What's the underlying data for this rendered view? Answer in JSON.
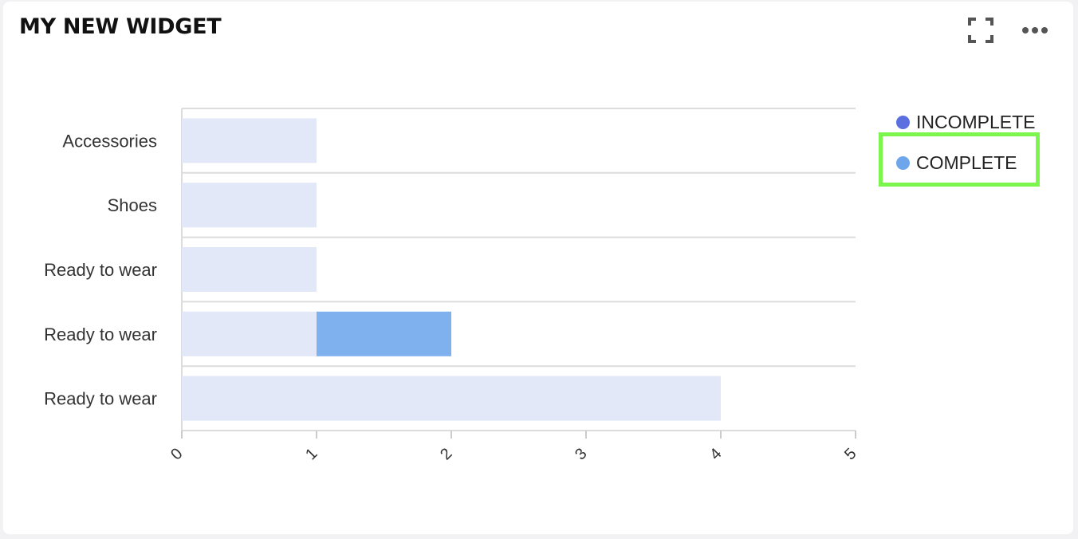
{
  "widget": {
    "title": "MY NEW WIDGET",
    "expand_icon": "expand-icon",
    "more_icon": "more-horizontal-icon"
  },
  "legend": {
    "items": [
      {
        "label": "INCOMPLETE",
        "color": "#5b6fe0"
      },
      {
        "label": "COMPLETE",
        "color": "#6ea6ec"
      }
    ],
    "highlighted_index": 1,
    "highlight_color": "#7cf54d"
  },
  "chart_data": {
    "type": "bar",
    "orientation": "horizontal",
    "stacked": true,
    "categories": [
      "Accessories",
      "Shoes",
      "Ready to wear",
      "Ready to wear",
      "Ready to wear"
    ],
    "series": [
      {
        "values": [
          1,
          1,
          1,
          1,
          4
        ],
        "color": "#e3e8f8"
      },
      {
        "name": "COMPLETE",
        "values": [
          0,
          0,
          0,
          1,
          0
        ],
        "color": "#7fb1ee"
      }
    ],
    "xlim": [
      0,
      5
    ],
    "xticks": [
      "0",
      "1",
      "2",
      "3",
      "4",
      "5"
    ],
    "grid": true,
    "legend_position": "right"
  }
}
